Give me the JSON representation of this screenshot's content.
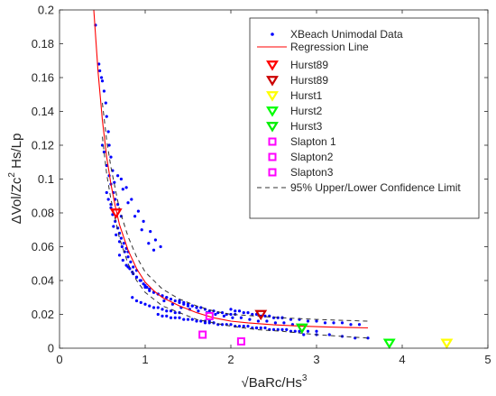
{
  "chart_data": {
    "type": "scatter",
    "xlabel": "√BaRc/Hs",
    "xlabel_sup": "3",
    "ylabel": "ΔVol/Zc",
    "ylabel_sup": "2",
    "ylabel_tail": " Hs/Lp",
    "xlim": [
      0,
      5
    ],
    "ylim": [
      0,
      0.2
    ],
    "x_ticks": [
      0,
      1,
      2,
      3,
      4,
      5
    ],
    "x_tick_labels": [
      "0",
      "1",
      "2",
      "3",
      "4",
      "5"
    ],
    "y_ticks": [
      0,
      0.02,
      0.04,
      0.06,
      0.08,
      0.1,
      0.12,
      0.14,
      0.16,
      0.18,
      0.2
    ],
    "y_tick_labels": [
      "0",
      "0.02",
      "0.04",
      "0.06",
      "0.08",
      "0.1",
      "0.12",
      "0.14",
      "0.16",
      "0.18",
      "0.2"
    ],
    "grid": false,
    "legend_position": "top-right",
    "series": [
      {
        "name": "XBeach Unimodal Data",
        "kind": "scatter",
        "marker": "dot",
        "color": "#0000ff",
        "x": [
          0.42,
          0.46,
          0.47,
          0.49,
          0.5,
          0.52,
          0.54,
          0.55,
          0.57,
          0.58,
          0.6,
          0.62,
          0.5,
          0.52,
          0.55,
          0.58,
          0.6,
          0.63,
          0.65,
          0.68,
          0.7,
          0.72,
          0.55,
          0.57,
          0.6,
          0.62,
          0.65,
          0.68,
          0.7,
          0.72,
          0.75,
          0.78,
          0.8,
          0.63,
          0.66,
          0.7,
          0.73,
          0.76,
          0.8,
          0.83,
          0.86,
          0.9,
          0.7,
          0.74,
          0.78,
          0.82,
          0.86,
          0.9,
          0.94,
          0.98,
          1.02,
          0.8,
          0.85,
          0.9,
          0.95,
          1.0,
          1.05,
          1.1,
          1.15,
          1.2,
          1.25,
          0.85,
          0.9,
          0.95,
          1.0,
          1.05,
          1.1,
          1.15,
          1.2,
          1.25,
          1.3,
          1.35,
          1.4,
          1.0,
          1.05,
          1.1,
          1.15,
          1.2,
          1.25,
          1.3,
          1.35,
          1.4,
          1.45,
          1.5,
          1.55,
          1.6,
          1.15,
          1.2,
          1.25,
          1.3,
          1.35,
          1.4,
          1.45,
          1.5,
          1.55,
          1.6,
          1.65,
          1.7,
          1.75,
          1.8,
          1.4,
          1.45,
          1.5,
          1.55,
          1.6,
          1.65,
          1.7,
          1.75,
          1.8,
          1.85,
          1.9,
          1.95,
          2.0,
          2.05,
          1.7,
          1.75,
          1.8,
          1.85,
          1.9,
          1.95,
          2.0,
          2.05,
          2.1,
          2.15,
          2.2,
          2.25,
          2.3,
          2.0,
          2.05,
          2.1,
          2.15,
          2.2,
          2.25,
          2.3,
          2.35,
          2.4,
          2.45,
          2.5,
          2.55,
          2.6,
          2.3,
          2.35,
          2.4,
          2.45,
          2.5,
          2.55,
          2.6,
          2.65,
          2.7,
          2.75,
          2.8,
          2.9,
          3.0,
          2.6,
          2.7,
          2.8,
          2.9,
          3.0,
          3.1,
          3.2,
          3.3,
          3.4,
          3.5,
          2.85,
          3.0,
          3.15,
          3.3,
          3.45,
          3.6,
          0.72,
          0.78,
          0.84,
          0.92,
          0.98,
          1.06,
          1.12,
          1.18,
          0.6,
          0.64,
          0.68,
          0.74,
          0.8,
          0.88,
          0.96,
          1.04,
          1.1,
          1.22,
          1.32,
          1.42,
          1.52,
          1.62,
          1.72,
          1.82,
          1.92,
          2.02,
          2.12,
          2.22,
          2.32,
          2.42,
          2.52,
          2.62,
          2.72
        ],
        "y": [
          0.191,
          0.168,
          0.164,
          0.16,
          0.158,
          0.152,
          0.145,
          0.137,
          0.128,
          0.12,
          0.113,
          0.105,
          0.12,
          0.116,
          0.108,
          0.102,
          0.097,
          0.092,
          0.088,
          0.085,
          0.082,
          0.078,
          0.092,
          0.088,
          0.083,
          0.079,
          0.075,
          0.071,
          0.068,
          0.065,
          0.062,
          0.059,
          0.057,
          0.072,
          0.067,
          0.063,
          0.06,
          0.057,
          0.054,
          0.051,
          0.048,
          0.046,
          0.055,
          0.052,
          0.049,
          0.047,
          0.044,
          0.042,
          0.04,
          0.038,
          0.036,
          0.048,
          0.045,
          0.042,
          0.04,
          0.037,
          0.035,
          0.033,
          0.032,
          0.031,
          0.03,
          0.03,
          0.028,
          0.027,
          0.026,
          0.025,
          0.024,
          0.024,
          0.023,
          0.022,
          0.022,
          0.021,
          0.021,
          0.036,
          0.034,
          0.033,
          0.032,
          0.031,
          0.03,
          0.029,
          0.028,
          0.027,
          0.026,
          0.025,
          0.025,
          0.024,
          0.02,
          0.019,
          0.019,
          0.018,
          0.018,
          0.018,
          0.017,
          0.017,
          0.017,
          0.016,
          0.016,
          0.016,
          0.016,
          0.015,
          0.028,
          0.027,
          0.026,
          0.025,
          0.024,
          0.024,
          0.023,
          0.022,
          0.022,
          0.021,
          0.021,
          0.02,
          0.02,
          0.02,
          0.015,
          0.015,
          0.015,
          0.014,
          0.014,
          0.014,
          0.014,
          0.013,
          0.013,
          0.013,
          0.013,
          0.012,
          0.012,
          0.023,
          0.022,
          0.022,
          0.021,
          0.021,
          0.02,
          0.02,
          0.019,
          0.019,
          0.019,
          0.018,
          0.018,
          0.018,
          0.012,
          0.012,
          0.012,
          0.011,
          0.011,
          0.011,
          0.011,
          0.011,
          0.01,
          0.01,
          0.01,
          0.01,
          0.01,
          0.018,
          0.017,
          0.017,
          0.016,
          0.016,
          0.015,
          0.015,
          0.015,
          0.014,
          0.014,
          0.008,
          0.008,
          0.008,
          0.007,
          0.006,
          0.006,
          0.1,
          0.095,
          0.088,
          0.081,
          0.075,
          0.069,
          0.064,
          0.06,
          0.085,
          0.098,
          0.102,
          0.094,
          0.086,
          0.078,
          0.07,
          0.062,
          0.058,
          0.028,
          0.026,
          0.024,
          0.023,
          0.022,
          0.021,
          0.02,
          0.019,
          0.018,
          0.018,
          0.017,
          0.016,
          0.016,
          0.015,
          0.015,
          0.014
        ]
      },
      {
        "name": "Regression Line",
        "kind": "line",
        "color": "#ff0000",
        "dash": "",
        "x": [
          0.4,
          0.45,
          0.5,
          0.55,
          0.6,
          0.65,
          0.7,
          0.8,
          0.9,
          1.0,
          1.1,
          1.2,
          1.4,
          1.6,
          1.8,
          2.0,
          2.2,
          2.5,
          2.8,
          3.1,
          3.4,
          3.6
        ],
        "y": [
          0.2,
          0.163,
          0.135,
          0.113,
          0.097,
          0.084,
          0.073,
          0.058,
          0.047,
          0.039,
          0.034,
          0.03,
          0.025,
          0.021,
          0.018,
          0.016,
          0.015,
          0.0138,
          0.0131,
          0.0126,
          0.0122,
          0.012
        ]
      },
      {
        "name": "Hurst89",
        "kind": "marker",
        "marker": "triangle-down",
        "color": "#ff0000",
        "x": [
          0.66
        ],
        "y": [
          0.08
        ]
      },
      {
        "name": "Hurst89",
        "kind": "marker",
        "marker": "triangle-down",
        "color": "#cc0000",
        "x": [
          2.35
        ],
        "y": [
          0.02
        ]
      },
      {
        "name": "Hurst1",
        "kind": "marker",
        "marker": "triangle-down",
        "color": "#ffff00",
        "x": [
          4.52
        ],
        "y": [
          0.003
        ]
      },
      {
        "name": "Hurst2",
        "kind": "marker",
        "marker": "triangle-down",
        "color": "#00ff00",
        "x": [
          3.85
        ],
        "y": [
          0.003
        ]
      },
      {
        "name": "Hurst3",
        "kind": "marker",
        "marker": "triangle-down",
        "color": "#00ee00",
        "x": [
          2.83
        ],
        "y": [
          0.012
        ]
      },
      {
        "name": "Slapton 1",
        "kind": "marker",
        "marker": "square",
        "color": "#ff00ff",
        "x": [
          1.67
        ],
        "y": [
          0.008
        ]
      },
      {
        "name": "Slapton2",
        "kind": "marker",
        "marker": "square",
        "color": "#ff00ff",
        "x": [
          1.75
        ],
        "y": [
          0.019
        ]
      },
      {
        "name": "Slapton3",
        "kind": "marker",
        "marker": "square",
        "color": "#ff00ff",
        "x": [
          2.12
        ],
        "y": [
          0.004
        ]
      },
      {
        "name": "95% Upper/Lower Confidence Limit",
        "kind": "line",
        "color": "#333333",
        "dash": "5,4",
        "x": [
          0.5,
          0.55,
          0.6,
          0.7,
          0.8,
          0.9,
          1.0,
          1.2,
          1.4,
          1.6,
          1.8,
          2.0,
          2.3,
          2.6,
          3.0,
          3.3,
          3.6
        ],
        "y": [
          0.145,
          0.123,
          0.107,
          0.082,
          0.066,
          0.054,
          0.045,
          0.035,
          0.029,
          0.025,
          0.022,
          0.02,
          0.019,
          0.018,
          0.017,
          0.0165,
          0.016
        ]
      },
      {
        "name": "",
        "kind": "line",
        "color": "#333333",
        "dash": "5,4",
        "x": [
          0.5,
          0.55,
          0.6,
          0.7,
          0.8,
          0.9,
          1.0,
          1.2,
          1.4,
          1.6,
          1.8,
          2.0,
          2.3,
          2.6,
          3.0,
          3.3,
          3.6
        ],
        "y": [
          0.125,
          0.103,
          0.088,
          0.065,
          0.05,
          0.04,
          0.033,
          0.025,
          0.021,
          0.017,
          0.015,
          0.013,
          0.011,
          0.01,
          0.008,
          0.007,
          0.006
        ]
      }
    ],
    "legend": [
      {
        "label": "XBeach Unimodal Data",
        "marker": "dot",
        "color": "#0000ff"
      },
      {
        "label": "Regression Line",
        "marker": "line",
        "color": "#ff0000"
      },
      {
        "label": "Hurst89",
        "marker": "triangle-down",
        "color": "#ff0000"
      },
      {
        "label": "Hurst89",
        "marker": "triangle-down",
        "color": "#cc0000"
      },
      {
        "label": "Hurst1",
        "marker": "triangle-down",
        "color": "#ffff00"
      },
      {
        "label": "Hurst2",
        "marker": "triangle-down",
        "color": "#00ff00"
      },
      {
        "label": "Hurst3",
        "marker": "triangle-down",
        "color": "#00ee00"
      },
      {
        "label": "Slapton 1",
        "marker": "square",
        "color": "#ff00ff"
      },
      {
        "label": "Slapton2",
        "marker": "square",
        "color": "#ff00ff"
      },
      {
        "label": "Slapton3",
        "marker": "square",
        "color": "#ff00ff"
      },
      {
        "label": "95% Upper/Lower Confidence Limit",
        "marker": "dashed-line",
        "color": "#333333"
      }
    ]
  }
}
